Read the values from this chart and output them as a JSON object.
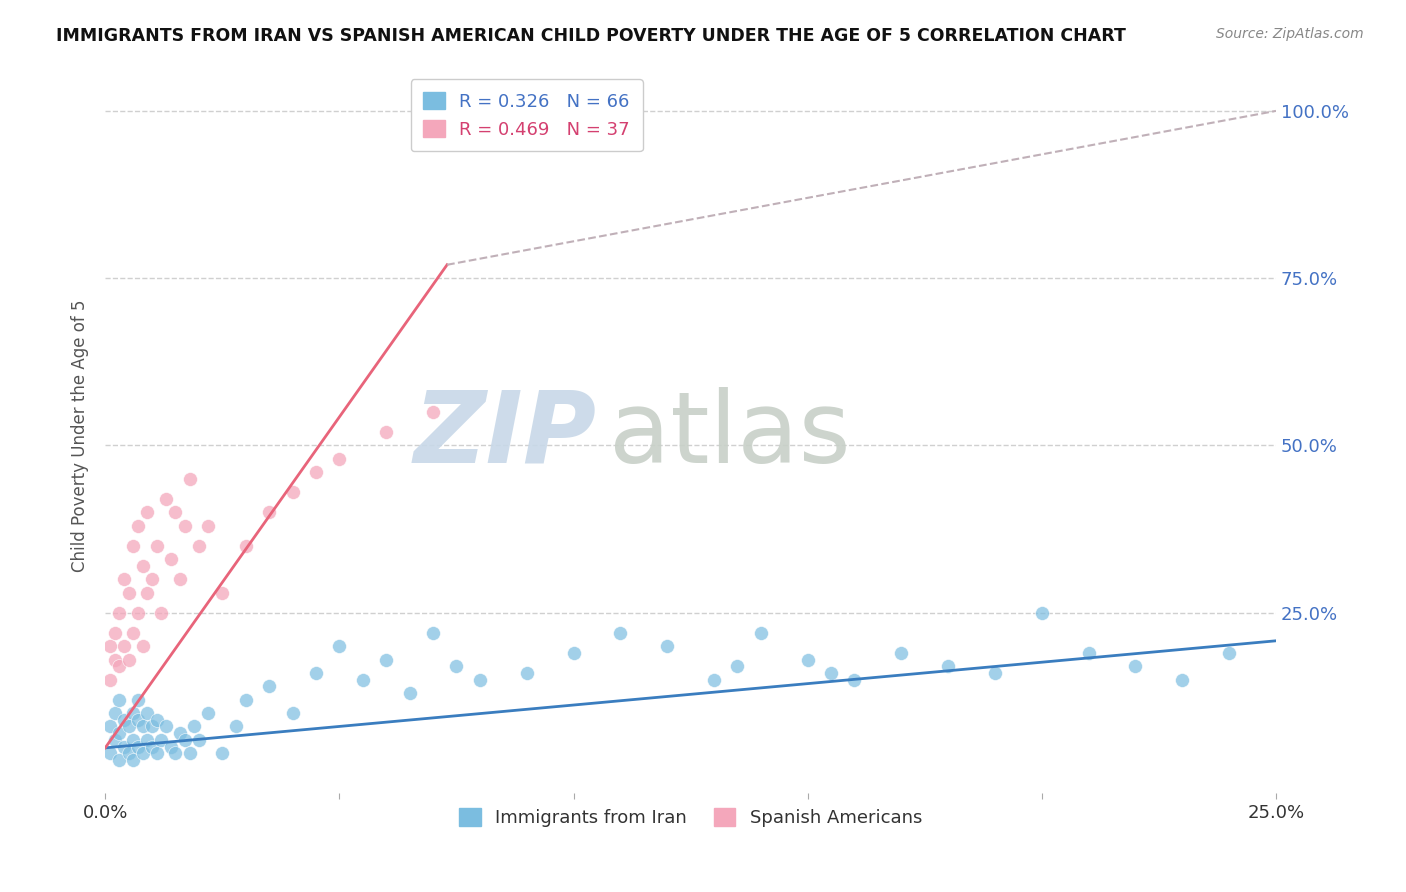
{
  "title": "IMMIGRANTS FROM IRAN VS SPANISH AMERICAN CHILD POVERTY UNDER THE AGE OF 5 CORRELATION CHART",
  "source": "Source: ZipAtlas.com",
  "ylabel": "Child Poverty Under the Age of 5",
  "xlabel_iran": "Immigrants from Iran",
  "xlabel_spanish": "Spanish Americans",
  "watermark": "ZIPatlas",
  "legend_iran": "R = 0.326   N = 66",
  "legend_spanish": "R = 0.469   N = 37",
  "xlim": [
    0.0,
    0.25
  ],
  "ylim": [
    -0.02,
    1.05
  ],
  "xticks": [
    0.0,
    0.05,
    0.1,
    0.15,
    0.2,
    0.25
  ],
  "xticklabels": [
    "0.0%",
    "",
    "",
    "",
    "",
    "25.0%"
  ],
  "yticks_right": [
    0.25,
    0.5,
    0.75,
    1.0
  ],
  "ytick_labels_right": [
    "25.0%",
    "50.0%",
    "75.0%",
    "100.0%"
  ],
  "grid_yticks": [
    0.25,
    0.5,
    0.75,
    1.0
  ],
  "color_iran": "#7bbde0",
  "color_spanish": "#f4a7bb",
  "trend_iran_color": "#3a7dbf",
  "trend_spanish_color": "#e8647a",
  "trend_dashed_color": "#c0b0b8",
  "background_color": "#ffffff",
  "grid_color": "#d0d0d0",
  "title_color": "#111111",
  "source_color": "#888888",
  "watermark_color_zip": "#c8d8e8",
  "watermark_color_atlas": "#c8d0c8",
  "iran_x": [
    0.001,
    0.001,
    0.002,
    0.002,
    0.003,
    0.003,
    0.003,
    0.004,
    0.004,
    0.005,
    0.005,
    0.006,
    0.006,
    0.006,
    0.007,
    0.007,
    0.007,
    0.008,
    0.008,
    0.009,
    0.009,
    0.01,
    0.01,
    0.011,
    0.011,
    0.012,
    0.013,
    0.014,
    0.015,
    0.016,
    0.017,
    0.018,
    0.019,
    0.02,
    0.022,
    0.025,
    0.028,
    0.03,
    0.035,
    0.04,
    0.045,
    0.05,
    0.055,
    0.06,
    0.065,
    0.07,
    0.075,
    0.08,
    0.09,
    0.1,
    0.11,
    0.12,
    0.13,
    0.14,
    0.15,
    0.16,
    0.17,
    0.18,
    0.19,
    0.2,
    0.21,
    0.22,
    0.23,
    0.24,
    0.135,
    0.155
  ],
  "iran_y": [
    0.04,
    0.08,
    0.06,
    0.1,
    0.03,
    0.07,
    0.12,
    0.05,
    0.09,
    0.04,
    0.08,
    0.06,
    0.1,
    0.03,
    0.05,
    0.09,
    0.12,
    0.04,
    0.08,
    0.06,
    0.1,
    0.05,
    0.08,
    0.04,
    0.09,
    0.06,
    0.08,
    0.05,
    0.04,
    0.07,
    0.06,
    0.04,
    0.08,
    0.06,
    0.1,
    0.04,
    0.08,
    0.12,
    0.14,
    0.1,
    0.16,
    0.2,
    0.15,
    0.18,
    0.13,
    0.22,
    0.17,
    0.15,
    0.16,
    0.19,
    0.22,
    0.2,
    0.15,
    0.22,
    0.18,
    0.15,
    0.19,
    0.17,
    0.16,
    0.25,
    0.19,
    0.17,
    0.15,
    0.19,
    0.17,
    0.16
  ],
  "spanish_x": [
    0.001,
    0.001,
    0.002,
    0.002,
    0.003,
    0.003,
    0.004,
    0.004,
    0.005,
    0.005,
    0.006,
    0.006,
    0.007,
    0.007,
    0.008,
    0.008,
    0.009,
    0.009,
    0.01,
    0.011,
    0.012,
    0.013,
    0.014,
    0.015,
    0.016,
    0.017,
    0.018,
    0.02,
    0.022,
    0.025,
    0.03,
    0.035,
    0.04,
    0.045,
    0.05,
    0.06,
    0.07
  ],
  "spanish_y": [
    0.15,
    0.2,
    0.18,
    0.22,
    0.17,
    0.25,
    0.2,
    0.3,
    0.18,
    0.28,
    0.22,
    0.35,
    0.25,
    0.38,
    0.2,
    0.32,
    0.28,
    0.4,
    0.3,
    0.35,
    0.25,
    0.42,
    0.33,
    0.4,
    0.3,
    0.38,
    0.45,
    0.35,
    0.38,
    0.28,
    0.35,
    0.4,
    0.43,
    0.46,
    0.48,
    0.52,
    0.55
  ],
  "iran_trend_x": [
    0.0,
    0.25
  ],
  "iran_trend_y": [
    0.048,
    0.208
  ],
  "spanish_trend_x": [
    0.0,
    0.073
  ],
  "spanish_trend_y": [
    0.048,
    0.77
  ],
  "dashed_trend_x": [
    0.073,
    0.25
  ],
  "dashed_trend_y": [
    0.77,
    1.0
  ]
}
